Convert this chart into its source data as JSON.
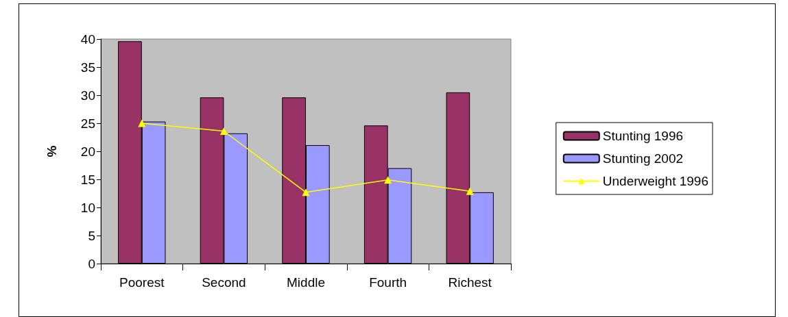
{
  "chart_data": {
    "type": "bar",
    "ylabel": "%",
    "categories": [
      "Poorest",
      "Second",
      "Middle",
      "Fourth",
      "Richest"
    ],
    "series": [
      {
        "name": "Stunting 1996",
        "color": "#993366",
        "values": [
          39.6,
          29.6,
          29.6,
          24.6,
          30.5
        ]
      },
      {
        "name": "Stunting 2002",
        "color": "#9999ff",
        "values": [
          25.3,
          23.2,
          21.1,
          17.0,
          12.7
        ]
      },
      {
        "name": "Underweight 1996",
        "type": "line",
        "color": "#ffff00",
        "marker": "triangle",
        "values": [
          25.0,
          23.6,
          12.7,
          14.9,
          12.9
        ]
      }
    ],
    "ylim": [
      0,
      40
    ],
    "yticks": [
      0,
      5,
      10,
      15,
      20,
      25,
      30,
      35,
      40
    ],
    "grid": false,
    "legend": "right"
  }
}
